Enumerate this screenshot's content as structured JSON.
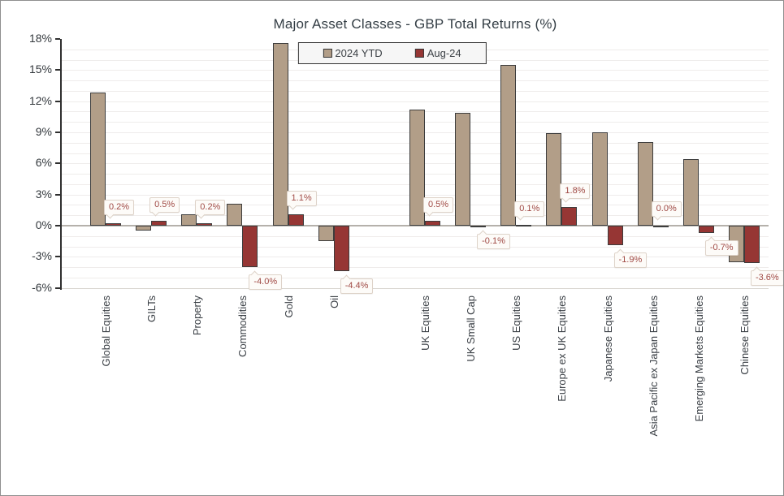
{
  "chart_data": {
    "type": "bar",
    "title": "Major Asset Classes - GBP Total Returns (%)",
    "categories": [
      "Global Equities",
      "GILTs",
      "Property",
      "Commodities",
      "Gold",
      "Oil",
      "",
      "UK Equities",
      "UK Small Cap",
      "US Equities",
      "Europe ex UK Equities",
      "Japanese Equities",
      "Asia Pacific ex Japan Equities",
      "Emerging Markets Equities",
      "Chinese Equities"
    ],
    "series": [
      {
        "name": "2024 YTD",
        "color": "#b29e88",
        "values": [
          12.8,
          -0.5,
          1.1,
          2.1,
          17.6,
          -1.5,
          null,
          11.2,
          10.9,
          15.5,
          8.9,
          9.0,
          8.1,
          6.4,
          -3.5
        ]
      },
      {
        "name": "Aug-24",
        "color": "#963634",
        "values": [
          0.2,
          0.5,
          0.2,
          -4.0,
          1.1,
          -4.4,
          null,
          0.5,
          -0.1,
          0.1,
          1.8,
          -1.9,
          0.0,
          -0.7,
          -3.6
        ],
        "data_labels": [
          "0.2%",
          "0.5%",
          "0.2%",
          "-4.0%",
          "1.1%",
          "-4.4%",
          null,
          "0.5%",
          "-0.1%",
          "0.1%",
          "1.8%",
          "-1.9%",
          "0.0%",
          "-0.7%",
          "-3.6%"
        ]
      }
    ],
    "ylim": [
      -6,
      18
    ],
    "ytick_step": 3,
    "ytick_labels": [
      "18%",
      "15%",
      "12%",
      "9%",
      "6%",
      "3%",
      "0%",
      "-3%",
      "-6%"
    ],
    "grid": "minor horizontal lines every 1%, emphasized zero line",
    "legend_position": "top-center",
    "bar_border_color": "#3d3d3d",
    "data_label_text_color": "#a04a45"
  }
}
